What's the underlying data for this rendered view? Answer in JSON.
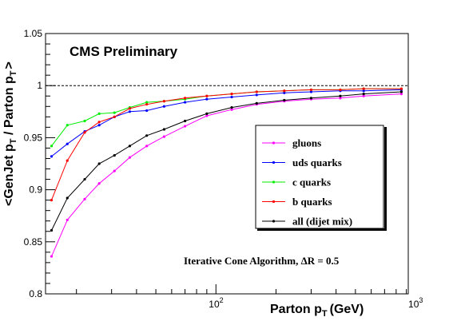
{
  "chart_data": {
    "type": "line",
    "title": "CMS Preliminary",
    "annotation": "Iterative Cone Algorithm,  ΔR = 0.5",
    "xlabel": {
      "main": "Parton p",
      "sub": "T",
      "suffix": "(GeV)"
    },
    "ylabel": {
      "p1": "<GenJet p",
      "s1": "T",
      "p2": " / Parton p",
      "s2": "T",
      "p3": ">"
    },
    "x_scale": "log",
    "xlim": [
      14,
      920
    ],
    "ylim": [
      0.8,
      1.05
    ],
    "y_ticks": [
      0.8,
      0.85,
      0.9,
      0.95,
      1,
      1.05
    ],
    "y_tick_labels": [
      "0.8",
      "0.85",
      "0.9",
      "0.95",
      "1",
      "1.05"
    ],
    "x_ticks_major": [
      {
        "value": 100,
        "base": "10",
        "exp": "2"
      },
      {
        "value": 1000,
        "base": "10",
        "exp": "3"
      }
    ],
    "reference_line": 1.0,
    "legend_position": "center-right",
    "series": [
      {
        "name": "gluons",
        "color": "#ff00ff",
        "x": [
          15,
          18,
          22,
          26,
          31,
          37,
          45,
          55,
          70,
          90,
          120,
          160,
          220,
          300,
          420,
          550,
          850
        ],
        "y": [
          0.836,
          0.871,
          0.891,
          0.906,
          0.918,
          0.931,
          0.942,
          0.951,
          0.961,
          0.971,
          0.977,
          0.982,
          0.985,
          0.987,
          0.988,
          0.99,
          0.992
        ]
      },
      {
        "name": "uds quarks",
        "color": "#0000ff",
        "x": [
          15,
          18,
          22,
          26,
          31,
          37,
          45,
          55,
          70,
          90,
          120,
          160,
          220,
          300,
          420,
          550,
          850
        ],
        "y": [
          0.932,
          0.944,
          0.956,
          0.962,
          0.97,
          0.975,
          0.976,
          0.98,
          0.984,
          0.987,
          0.989,
          0.991,
          0.993,
          0.994,
          0.995,
          0.995,
          0.996
        ]
      },
      {
        "name": "c quarks",
        "color": "#00ee00",
        "x": [
          15,
          18,
          22,
          26,
          31,
          37,
          45,
          55,
          70,
          90,
          120,
          160,
          220,
          300,
          420,
          550,
          850
        ],
        "y": [
          0.942,
          0.962,
          0.966,
          0.973,
          0.974,
          0.979,
          0.984,
          0.985,
          0.987,
          0.99,
          0.992,
          0.994,
          0.995,
          0.996,
          0.996,
          0.997,
          0.997
        ]
      },
      {
        "name": "b quarks",
        "color": "#ff0000",
        "x": [
          15,
          18,
          22,
          26,
          31,
          37,
          45,
          55,
          70,
          90,
          120,
          160,
          220,
          300,
          420,
          550,
          850
        ],
        "y": [
          0.89,
          0.928,
          0.955,
          0.965,
          0.97,
          0.978,
          0.982,
          0.985,
          0.988,
          0.99,
          0.992,
          0.994,
          0.995,
          0.996,
          0.996,
          0.997,
          0.997
        ]
      },
      {
        "name": "all (dijet mix)",
        "color": "#000000",
        "x": [
          15,
          18,
          22,
          26,
          31,
          37,
          45,
          55,
          70,
          90,
          120,
          160,
          220,
          300,
          420,
          550,
          850
        ],
        "y": [
          0.861,
          0.892,
          0.91,
          0.925,
          0.933,
          0.942,
          0.952,
          0.958,
          0.966,
          0.973,
          0.979,
          0.983,
          0.986,
          0.988,
          0.99,
          0.992,
          0.994
        ]
      }
    ]
  }
}
